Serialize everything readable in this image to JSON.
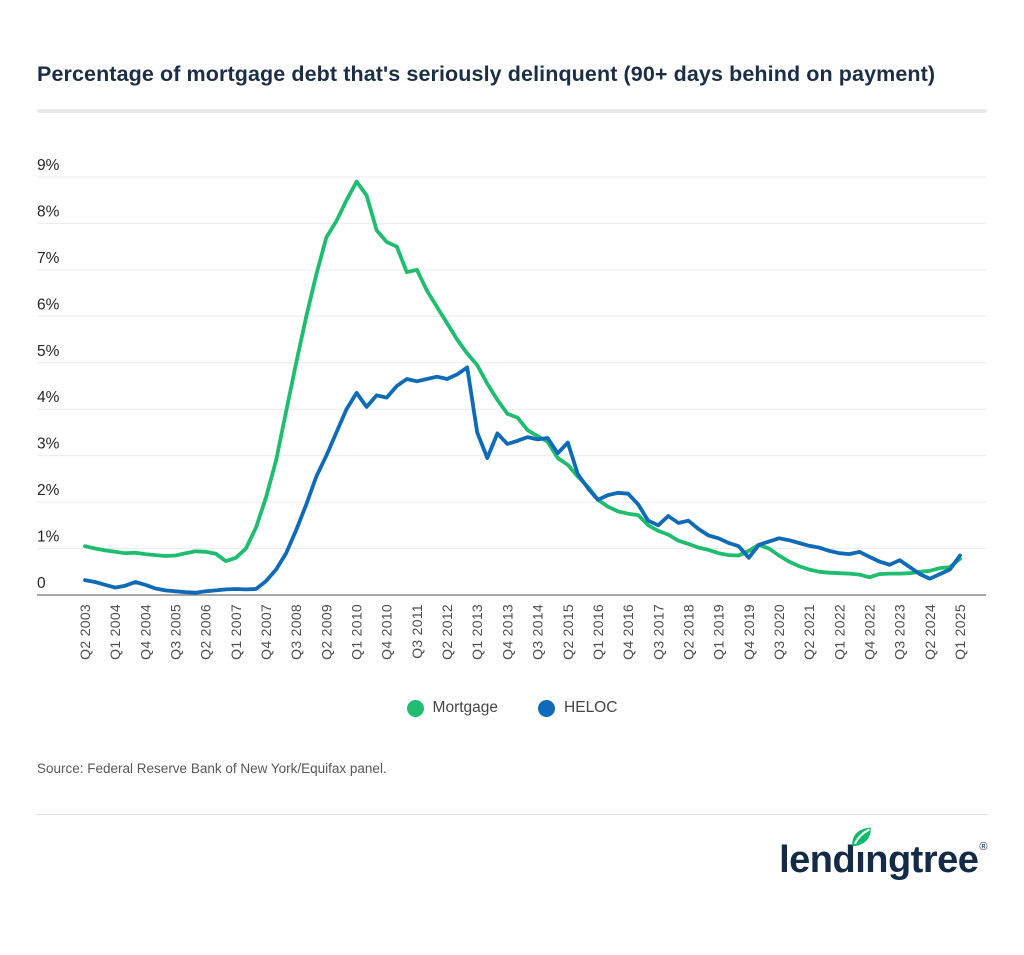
{
  "page": {
    "title": "Percentage of mortgage debt that's seriously delinquent (90+ days behind on payment)",
    "source": "Source: Federal Reserve Bank of New York/Equifax panel.",
    "logo": {
      "pre": "lend",
      "i": "ı",
      "post": "ngtree",
      "trademark": "®",
      "full_text": "lendingtree"
    }
  },
  "colors": {
    "mortgage_green": "#1fbd70",
    "heloc_blue": "#0f6bb8",
    "title_navy": "#1c2e45",
    "grid_gray": "#ececec",
    "axis_gray": "#757575",
    "tick_label_gray": "#4d4d4d"
  },
  "chart_data": {
    "type": "line",
    "title": "Percentage of mortgage debt that's seriously delinquent (90+ days behind on payment)",
    "x_unit": "quarter",
    "x_start": "Q2 2003",
    "x_end": "Q1 2025",
    "n_points": 88,
    "tick_every": 3,
    "x_tick_labels": [
      "Q2 2003",
      "Q1 2004",
      "Q4 2004",
      "Q3 2005",
      "Q2 2006",
      "Q1 2007",
      "Q4 2007",
      "Q3 2008",
      "Q2 2009",
      "Q1 2010",
      "Q4 2010",
      "Q3 2011",
      "Q2 2012",
      "Q1 2013",
      "Q4 2013",
      "Q3 2014",
      "Q2 2015",
      "Q1 2016",
      "Q4 2016",
      "Q3 2017",
      "Q2 2018",
      "Q1 2019",
      "Q4 2019",
      "Q3 2020",
      "Q2 2021",
      "Q1 2022",
      "Q4 2022",
      "Q3 2023",
      "Q2 2024",
      "Q1 2025"
    ],
    "y_tick_labels": [
      "0",
      "1%",
      "2%",
      "3%",
      "4%",
      "5%",
      "6%",
      "7%",
      "8%",
      "9%"
    ],
    "ylim": [
      0,
      9
    ],
    "grid": "horizontal",
    "legend_position": "bottom-center",
    "series": [
      {
        "name": "Mortgage",
        "color": "#1fbd70",
        "values": [
          1.05,
          1.0,
          0.96,
          0.93,
          0.9,
          0.91,
          0.88,
          0.86,
          0.84,
          0.85,
          0.9,
          0.94,
          0.93,
          0.89,
          0.73,
          0.8,
          1.0,
          1.45,
          2.1,
          2.9,
          3.95,
          5.0,
          6.0,
          6.9,
          7.7,
          8.05,
          8.5,
          8.9,
          8.6,
          7.85,
          7.6,
          7.5,
          6.95,
          7.0,
          6.55,
          6.2,
          5.85,
          5.5,
          5.2,
          4.95,
          4.55,
          4.2,
          3.9,
          3.82,
          3.55,
          3.42,
          3.3,
          2.95,
          2.8,
          2.55,
          2.33,
          2.05,
          1.9,
          1.8,
          1.75,
          1.72,
          1.5,
          1.38,
          1.3,
          1.17,
          1.1,
          1.02,
          0.97,
          0.9,
          0.86,
          0.85,
          0.95,
          1.08,
          1.0,
          0.85,
          0.72,
          0.62,
          0.55,
          0.5,
          0.48,
          0.47,
          0.46,
          0.44,
          0.38,
          0.45,
          0.46,
          0.46,
          0.47,
          0.5,
          0.52,
          0.58,
          0.6,
          0.78
        ]
      },
      {
        "name": "HELOC",
        "color": "#0f6bb8",
        "values": [
          0.32,
          0.28,
          0.22,
          0.16,
          0.2,
          0.28,
          0.22,
          0.14,
          0.1,
          0.08,
          0.06,
          0.05,
          0.08,
          0.1,
          0.12,
          0.13,
          0.12,
          0.13,
          0.3,
          0.55,
          0.9,
          1.4,
          1.95,
          2.55,
          3.0,
          3.5,
          4.0,
          4.35,
          4.05,
          4.3,
          4.25,
          4.5,
          4.65,
          4.6,
          4.65,
          4.7,
          4.65,
          4.75,
          4.9,
          3.5,
          2.95,
          3.48,
          3.25,
          3.32,
          3.4,
          3.35,
          3.38,
          3.05,
          3.28,
          2.6,
          2.3,
          2.05,
          2.15,
          2.2,
          2.18,
          1.95,
          1.6,
          1.5,
          1.7,
          1.55,
          1.6,
          1.42,
          1.28,
          1.22,
          1.12,
          1.05,
          0.8,
          1.08,
          1.15,
          1.22,
          1.18,
          1.12,
          1.06,
          1.02,
          0.95,
          0.9,
          0.88,
          0.93,
          0.82,
          0.72,
          0.65,
          0.75,
          0.6,
          0.45,
          0.35,
          0.45,
          0.55,
          0.85
        ]
      }
    ]
  }
}
